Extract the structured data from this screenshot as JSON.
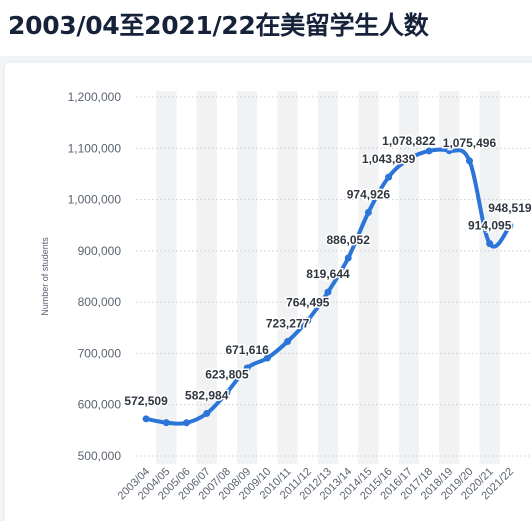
{
  "page": {
    "title": "2003/04至2021/22在美留学生人数"
  },
  "colors": {
    "line": "#2b74d8",
    "band": "#f0f2f4",
    "grid": "#c9ced4"
  },
  "chart_data": {
    "type": "line",
    "title": "",
    "xlabel": "",
    "ylabel": "Number of students",
    "ylim": [
      500000,
      1200000
    ],
    "y_ticks": [
      500000,
      600000,
      700000,
      800000,
      900000,
      1000000,
      1100000,
      1200000
    ],
    "y_tick_labels": [
      "500,000",
      "600,000",
      "700,000",
      "800,000",
      "900,000",
      "1,000,000",
      "1,100,000",
      "1,200,000"
    ],
    "grid": true,
    "categories": [
      "2003/04",
      "2004/05",
      "2005/06",
      "2006/07",
      "2007/08",
      "2008/09",
      "2009/10",
      "2010/11",
      "2011/12",
      "2012/13",
      "2013/14",
      "2014/15",
      "2015/16",
      "2016/17",
      "2017/18",
      "2018/19",
      "2019/20",
      "2020/21",
      "2021/22"
    ],
    "values": [
      572509,
      565039,
      564766,
      582984,
      623805,
      671616,
      690923,
      723277,
      764495,
      819644,
      886052,
      974926,
      1043839,
      1078822,
      1094792,
      1095299,
      1075496,
      914095,
      948519
    ],
    "labels": [
      "572,509",
      "",
      "",
      "582,984",
      "623,805",
      "671,616",
      "",
      "723,277",
      "764,495",
      "819,644",
      "886,052",
      "974,926",
      "1,043,839",
      "1,078,822",
      "",
      "",
      "1,075,496",
      "914,095",
      "948,519"
    ]
  }
}
